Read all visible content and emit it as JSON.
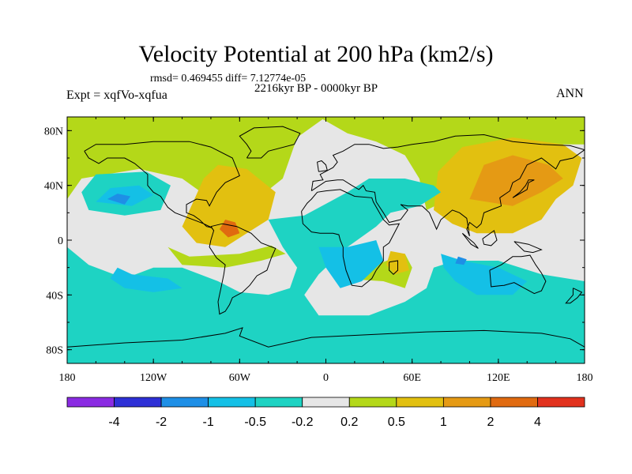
{
  "chart_data": {
    "type": "heatmap",
    "title": "Velocity Potential at 200 hPa (km2/s)",
    "subtitle": "2216kyr BP - 0000kyr BP",
    "stats_text": "rmsd= 0.469455 diff= 7.12774e-05",
    "left_label": "Expt = xqfVo-xqfua",
    "right_label": "ANN",
    "x_ticks": [
      {
        "value": -180,
        "label": "180"
      },
      {
        "value": -120,
        "label": "120W"
      },
      {
        "value": -60,
        "label": "60W"
      },
      {
        "value": 0,
        "label": "0"
      },
      {
        "value": 60,
        "label": "60E"
      },
      {
        "value": 120,
        "label": "120E"
      },
      {
        "value": 180,
        "label": "180"
      }
    ],
    "y_ticks": [
      {
        "value": 80,
        "label": "80N"
      },
      {
        "value": 40,
        "label": "40N"
      },
      {
        "value": 0,
        "label": "0"
      },
      {
        "value": -40,
        "label": "40S"
      },
      {
        "value": -80,
        "label": "80S"
      }
    ],
    "xlim": [
      -180,
      180
    ],
    "ylim": [
      -90,
      90
    ],
    "colorbar": {
      "colors": [
        "#8a2be2",
        "#2e30d6",
        "#1e8fe6",
        "#14c0e6",
        "#1ed3c3",
        "#e6e6e6",
        "#b4d819",
        "#e2c010",
        "#e59a14",
        "#e06a10",
        "#e2321e"
      ],
      "labels": [
        "-4",
        "-2",
        "-1",
        "-0.5",
        "-0.2",
        "0.2",
        "0.5",
        "1",
        "2",
        "4"
      ]
    },
    "regions": [
      {
        "level": "positive_0.2_0.5",
        "color": "#b4d819",
        "poly": [
          [
            -180,
            30
          ],
          [
            -170,
            45
          ],
          [
            -130,
            52
          ],
          [
            -100,
            45
          ],
          [
            -80,
            30
          ],
          [
            -60,
            20
          ],
          [
            -30,
            45
          ],
          [
            -20,
            75
          ],
          [
            0,
            90
          ],
          [
            -180,
            90
          ]
        ]
      },
      {
        "level": "positive_0.2_0.5",
        "color": "#b4d819",
        "poly": [
          [
            -5,
            90
          ],
          [
            15,
            78
          ],
          [
            35,
            72
          ],
          [
            55,
            62
          ],
          [
            65,
            45
          ],
          [
            70,
            22
          ],
          [
            90,
            32
          ],
          [
            110,
            45
          ],
          [
            150,
            70
          ],
          [
            180,
            70
          ],
          [
            180,
            90
          ]
        ]
      },
      {
        "level": "positive_0.2_0.5",
        "color": "#b4d819",
        "poly": [
          [
            10,
            -28
          ],
          [
            55,
            -10
          ],
          [
            60,
            -20
          ],
          [
            55,
            -35
          ],
          [
            40,
            -30
          ]
        ]
      },
      {
        "level": "positive_0.2_0.5",
        "color": "#b4d819",
        "poly": [
          [
            -110,
            -5
          ],
          [
            -95,
            -12
          ],
          [
            -60,
            -10
          ],
          [
            -38,
            -4
          ],
          [
            -28,
            -10
          ],
          [
            -45,
            -15
          ],
          [
            -70,
            -20
          ],
          [
            -100,
            -18
          ]
        ]
      },
      {
        "level": "positive_0.5_1",
        "color": "#e2c010",
        "poly": [
          [
            -100,
            10
          ],
          [
            -85,
            45
          ],
          [
            -75,
            55
          ],
          [
            -55,
            52
          ],
          [
            -35,
            35
          ],
          [
            -40,
            15
          ],
          [
            -55,
            5
          ],
          [
            -70,
            -5
          ],
          [
            -90,
            -2
          ]
        ]
      },
      {
        "level": "positive_0.5_1",
        "color": "#e2c010",
        "poly": [
          [
            75,
            22
          ],
          [
            78,
            50
          ],
          [
            95,
            68
          ],
          [
            130,
            75
          ],
          [
            165,
            70
          ],
          [
            178,
            60
          ],
          [
            172,
            40
          ],
          [
            160,
            30
          ],
          [
            150,
            15
          ],
          [
            130,
            5
          ],
          [
            105,
            5
          ],
          [
            88,
            12
          ]
        ]
      },
      {
        "level": "positive_0.5_1",
        "color": "#e2c010",
        "poly": [
          [
            45,
            -8
          ],
          [
            55,
            -10
          ],
          [
            58,
            -22
          ],
          [
            48,
            -25
          ],
          [
            42,
            -18
          ]
        ]
      },
      {
        "level": "positive_1_2",
        "color": "#e59a14",
        "poly": [
          [
            100,
            30
          ],
          [
            110,
            55
          ],
          [
            130,
            62
          ],
          [
            155,
            55
          ],
          [
            165,
            45
          ],
          [
            150,
            35
          ],
          [
            130,
            25
          ]
        ]
      },
      {
        "level": "positive_2_4",
        "color": "#e06a10",
        "poly": [
          [
            -74,
            8
          ],
          [
            -70,
            15
          ],
          [
            -63,
            13
          ],
          [
            -60,
            5
          ],
          [
            -68,
            2
          ]
        ]
      },
      {
        "level": "negative_-0.2_-0.5",
        "color": "#1ed3c3",
        "poly": [
          [
            -170,
            35
          ],
          [
            -160,
            48
          ],
          [
            -125,
            50
          ],
          [
            -108,
            40
          ],
          [
            -115,
            22
          ],
          [
            -140,
            18
          ],
          [
            -165,
            22
          ]
        ]
      },
      {
        "level": "negative_-0.2_-0.5",
        "color": "#1ed3c3",
        "poly": [
          [
            -40,
            15
          ],
          [
            -15,
            18
          ],
          [
            15,
            35
          ],
          [
            30,
            45
          ],
          [
            55,
            45
          ],
          [
            75,
            40
          ],
          [
            80,
            35
          ],
          [
            65,
            25
          ],
          [
            45,
            20
          ],
          [
            35,
            10
          ],
          [
            15,
            -5
          ],
          [
            -5,
            -25
          ],
          [
            -15,
            -40
          ],
          [
            -5,
            -55
          ],
          [
            30,
            -55
          ],
          [
            55,
            -45
          ],
          [
            70,
            -35
          ],
          [
            75,
            -20
          ],
          [
            90,
            -15
          ],
          [
            120,
            -15
          ],
          [
            150,
            -25
          ],
          [
            180,
            -30
          ],
          [
            180,
            -90
          ],
          [
            -180,
            -90
          ],
          [
            -180,
            -5
          ],
          [
            -165,
            -18
          ],
          [
            -140,
            -28
          ],
          [
            -120,
            -20
          ],
          [
            -100,
            -20
          ],
          [
            -75,
            -30
          ],
          [
            -60,
            -38
          ],
          [
            -40,
            -40
          ],
          [
            -25,
            -35
          ],
          [
            -20,
            -20
          ],
          [
            -30,
            -5
          ]
        ]
      },
      {
        "level": "negative_-0.5_-1",
        "color": "#14c0e6",
        "poly": [
          [
            -160,
            28
          ],
          [
            -150,
            38
          ],
          [
            -130,
            40
          ],
          [
            -120,
            33
          ],
          [
            -135,
            25
          ]
        ]
      },
      {
        "level": "negative_-0.5_-1",
        "color": "#14c0e6",
        "poly": [
          [
            -5,
            -5
          ],
          [
            15,
            -5
          ],
          [
            35,
            0
          ],
          [
            40,
            -15
          ],
          [
            25,
            -30
          ],
          [
            10,
            -35
          ],
          [
            0,
            -20
          ]
        ]
      },
      {
        "level": "negative_-0.5_-1",
        "color": "#14c0e6",
        "poly": [
          [
            -145,
            -20
          ],
          [
            -135,
            -25
          ],
          [
            -110,
            -28
          ],
          [
            -100,
            -35
          ],
          [
            -120,
            -38
          ],
          [
            -140,
            -35
          ],
          [
            -150,
            -28
          ]
        ]
      },
      {
        "level": "negative_-0.5_-1",
        "color": "#14c0e6",
        "poly": [
          [
            80,
            -10
          ],
          [
            95,
            -15
          ],
          [
            120,
            -20
          ],
          [
            140,
            -30
          ],
          [
            130,
            -40
          ],
          [
            105,
            -40
          ],
          [
            90,
            -30
          ],
          [
            82,
            -20
          ]
        ]
      },
      {
        "level": "negative_-1_-2",
        "color": "#1e8fe6",
        "poly": [
          [
            -152,
            30
          ],
          [
            -145,
            34
          ],
          [
            -136,
            32
          ],
          [
            -140,
            26
          ]
        ]
      },
      {
        "level": "negative_-1_-2",
        "color": "#1e8fe6",
        "poly": [
          [
            92,
            -12
          ],
          [
            98,
            -14
          ],
          [
            96,
            -18
          ],
          [
            90,
            -17
          ]
        ]
      }
    ]
  }
}
